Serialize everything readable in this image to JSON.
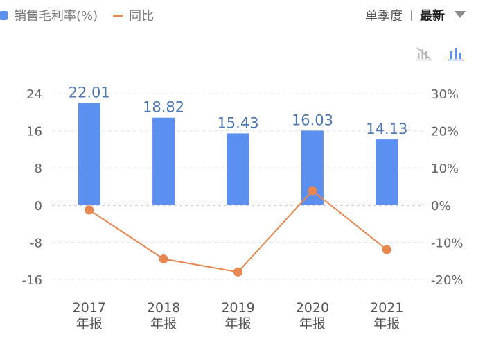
{
  "legend": {
    "bar_label": "销售毛利率(%)",
    "line_label": "同比"
  },
  "period": {
    "quarter_label": "单季度",
    "latest_label": "最新"
  },
  "icons": {
    "line_view": "line-chart-icon",
    "bar_view": "bar-chart-icon",
    "dropdown": "chevron-down-icon"
  },
  "colors": {
    "bar": "#5b8ff0",
    "line": "#e8864f",
    "value_label": "#4e77b8"
  },
  "chart_data": {
    "type": "bar",
    "categories": [
      "2017\n年报",
      "2018\n年报",
      "2019\n年报",
      "2020\n年报",
      "2021\n年报"
    ],
    "series": [
      {
        "name": "销售毛利率(%)",
        "type": "bar",
        "axis": "left",
        "values": [
          22.01,
          18.82,
          15.43,
          16.03,
          14.13
        ]
      },
      {
        "name": "同比",
        "type": "line",
        "axis": "right",
        "values": [
          -1.3,
          -14.5,
          -18.0,
          3.9,
          -12.0
        ]
      }
    ],
    "y_left": {
      "range": [
        -16,
        24
      ],
      "ticks": [
        "24",
        "16",
        "8",
        "0",
        "-8",
        "-16"
      ]
    },
    "y_right": {
      "range": [
        -20,
        30
      ],
      "ticks": [
        "30%",
        "20%",
        "10%",
        "0%",
        "-10%",
        "-20%"
      ]
    },
    "data_labels": [
      "22.01",
      "18.82",
      "15.43",
      "16.03",
      "14.13"
    ],
    "grid": true
  }
}
